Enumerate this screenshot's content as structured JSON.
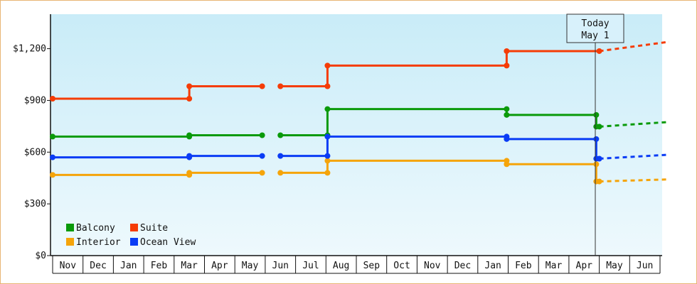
{
  "chart_data": {
    "type": "line",
    "y_ticks": [
      "$0",
      "$300",
      "$600",
      "$900",
      "$1,200"
    ],
    "y_tick_values": [
      0,
      300,
      600,
      900,
      1200
    ],
    "ylim": [
      0,
      1400
    ],
    "x_labels": [
      "Nov",
      "Dec",
      "Jan",
      "Feb",
      "Mar",
      "Apr",
      "May",
      "Jun",
      "Jul",
      "Aug",
      "Sep",
      "Oct",
      "Nov",
      "Dec",
      "Jan",
      "Feb",
      "Mar",
      "Apr",
      "May",
      "Jun"
    ],
    "today_label_line1": "Today",
    "today_label_line2": "May 1",
    "today_month_index": 18,
    "grid": false,
    "legend_position": "bottom-left",
    "series": [
      {
        "name": "Balcony",
        "color": "#0a9a0a",
        "steps": [
          {
            "x": [
              0,
              4.5
            ],
            "y": 690
          },
          {
            "x": [
              4.5,
              6.9
            ],
            "y": 698
          },
          {
            "x": [
              7.5,
              9.05
            ],
            "y": 698
          },
          {
            "x": [
              9.05,
              14.95
            ],
            "y": 850
          },
          {
            "x": [
              14.95,
              17.9
            ],
            "y": 816
          },
          {
            "x": [
              17.9,
              18.0
            ],
            "y": 748
          }
        ],
        "forecast": {
          "x": [
            18.0,
            20.3
          ],
          "y": [
            748,
            775
          ]
        }
      },
      {
        "name": "Suite",
        "color": "#f53c06",
        "steps": [
          {
            "x": [
              0,
              4.5
            ],
            "y": 910
          },
          {
            "x": [
              4.5,
              6.9
            ],
            "y": 982
          },
          {
            "x": [
              7.5,
              9.05
            ],
            "y": 982
          },
          {
            "x": [
              9.05,
              14.95
            ],
            "y": 1102
          },
          {
            "x": [
              14.95,
              18.0
            ],
            "y": 1186
          }
        ],
        "forecast": {
          "x": [
            18.0,
            20.3
          ],
          "y": [
            1186,
            1240
          ]
        }
      },
      {
        "name": "Interior",
        "color": "#f5a40a",
        "steps": [
          {
            "x": [
              0,
              4.5
            ],
            "y": 468
          },
          {
            "x": [
              4.5,
              6.9
            ],
            "y": 480
          },
          {
            "x": [
              7.5,
              9.05
            ],
            "y": 480
          },
          {
            "x": [
              9.05,
              14.95
            ],
            "y": 550
          },
          {
            "x": [
              14.95,
              17.9
            ],
            "y": 530
          },
          {
            "x": [
              17.9,
              18.0
            ],
            "y": 430
          }
        ],
        "forecast": {
          "x": [
            18.0,
            20.3
          ],
          "y": [
            430,
            442
          ]
        }
      },
      {
        "name": "Ocean View",
        "color": "#0a3cf5",
        "steps": [
          {
            "x": [
              0,
              4.5
            ],
            "y": 570
          },
          {
            "x": [
              4.5,
              6.9
            ],
            "y": 578
          },
          {
            "x": [
              7.5,
              9.05
            ],
            "y": 578
          },
          {
            "x": [
              9.05,
              14.95
            ],
            "y": 690
          },
          {
            "x": [
              14.95,
              17.9
            ],
            "y": 676
          },
          {
            "x": [
              17.9,
              18.0
            ],
            "y": 562
          }
        ],
        "forecast": {
          "x": [
            18.0,
            20.3
          ],
          "y": [
            562,
            585
          ]
        }
      }
    ]
  }
}
